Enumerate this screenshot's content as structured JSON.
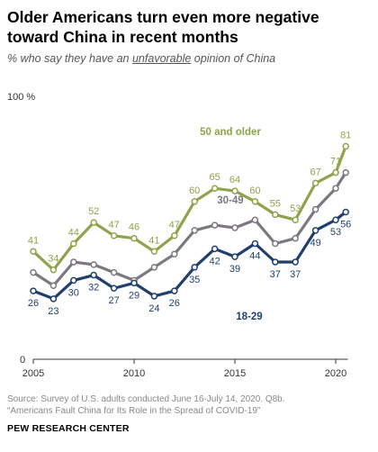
{
  "title": "Older Americans turn even more negative toward China in recent months",
  "subtitle_pre": "% who say they have an ",
  "subtitle_em": "unfavorable",
  "subtitle_post": " opinion of China",
  "source_line1": "Source: Survey of U.S. adults conducted June 16-July 14, 2020. Q8b.",
  "source_line2": "“Americans Fault China for Its Role in the Spread of COVID-19”",
  "brand": "PEW RESEARCH CENTER",
  "chart_data": {
    "type": "line",
    "ylim": [
      0,
      100
    ],
    "xlim": [
      2005,
      2020.6
    ],
    "grid": false,
    "x_ticks": [
      2005,
      2010,
      2015,
      2020
    ],
    "x_tick_labels": [
      "2005",
      "2010",
      "2015",
      "2020"
    ],
    "y_tick_labels": [
      {
        "value": 100,
        "label": "100 %"
      },
      {
        "value": 0,
        "label": "0"
      }
    ],
    "series": [
      {
        "name": "50 and older",
        "color": "#8fa34a",
        "x": [
          2005,
          2006,
          2007,
          2008,
          2009,
          2010,
          2011,
          2012,
          2013,
          2014,
          2015,
          2016,
          2017,
          2018,
          2019,
          2020,
          2020.5
        ],
        "values": [
          41,
          34,
          44,
          52,
          47,
          46,
          41,
          47,
          60,
          65,
          64,
          60,
          55,
          53,
          67,
          71,
          81
        ],
        "labels": [
          "41",
          "34",
          "44",
          "52",
          "47",
          "46",
          "41",
          "47",
          "60",
          "65",
          "64",
          "60",
          "55",
          "53",
          "67",
          "71",
          "81"
        ]
      },
      {
        "name": "30-49",
        "color": "#7d7781",
        "x": [
          2005,
          2006,
          2007,
          2008,
          2009,
          2010,
          2011,
          2012,
          2013,
          2014,
          2015,
          2016,
          2017,
          2018,
          2019,
          2020,
          2020.5
        ],
        "values": [
          33,
          28,
          37,
          36,
          33,
          30,
          35,
          40,
          49,
          51,
          50,
          53,
          44,
          46,
          57,
          65,
          71
        ],
        "labels": []
      },
      {
        "name": "18-29",
        "color": "#1f3f6e",
        "x": [
          2005,
          2006,
          2007,
          2008,
          2009,
          2010,
          2011,
          2012,
          2013,
          2014,
          2015,
          2016,
          2017,
          2018,
          2019,
          2020,
          2020.5
        ],
        "values": [
          26,
          23,
          30,
          32,
          27,
          29,
          24,
          26,
          35,
          42,
          39,
          44,
          37,
          37,
          49,
          53,
          56
        ],
        "labels": [
          "26",
          "23",
          "30",
          "32",
          "27",
          "29",
          "24",
          "26",
          "35",
          "42",
          "39",
          "44",
          "37",
          "37",
          "49",
          "53",
          "56"
        ]
      }
    ]
  }
}
